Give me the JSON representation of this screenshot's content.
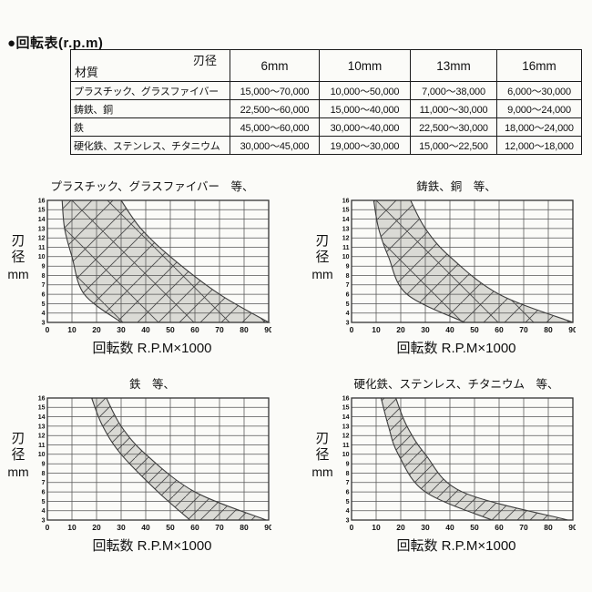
{
  "page": {
    "title": "●回転表(r.p.m)"
  },
  "colors": {
    "ink": "#111111",
    "table_border": "#1b1b1b",
    "grid": "#555555",
    "plot_border": "#333333",
    "band_fill": "#dadad5",
    "band_edge": "#3d3d3d",
    "hatch": "#4a4a4a"
  },
  "table": {
    "corner": {
      "top_right": "刃径",
      "bottom_left": "材質"
    },
    "columns": [
      "6mm",
      "10mm",
      "13mm",
      "16mm"
    ],
    "rows": [
      {
        "material": "プラスチック、グラスファイバー",
        "values": [
          "15,000〜70,000",
          "10,000〜50,000",
          "7,000〜38,000",
          "6,000〜30,000"
        ]
      },
      {
        "material": "鋳鉄、銅",
        "values": [
          "22,500〜60,000",
          "15,000〜40,000",
          "11,000〜30,000",
          "9,000〜24,000"
        ]
      },
      {
        "material": "鉄",
        "values": [
          "45,000〜60,000",
          "30,000〜40,000",
          "22,500〜30,000",
          "18,000〜24,000"
        ]
      },
      {
        "material": "硬化鉄、ステンレス、チタニウム",
        "values": [
          "30,000〜45,000",
          "19,000〜30,000",
          "15,000〜22,500",
          "12,000〜18,000"
        ]
      }
    ]
  },
  "axes": {
    "ylabel_chars": [
      "刃",
      "径",
      "mm"
    ],
    "xlabel": "回転数 R.P.M×1000"
  },
  "chart_data": [
    {
      "type": "area",
      "title": "プラスチック、グラスファイバー　等、",
      "xlabel": "回転数 R.P.M×1000",
      "ylabel": "刃径 mm",
      "xlim": [
        0,
        90
      ],
      "ylim": [
        3,
        16
      ],
      "x_tick_step": 10,
      "y_tick_step": 1,
      "grid": true,
      "hatch": "cross",
      "hatch_spacing": 23,
      "band": {
        "left": [
          [
            6,
            16
          ],
          [
            7,
            13
          ],
          [
            10,
            10
          ],
          [
            15,
            6
          ],
          [
            30,
            3
          ]
        ],
        "right": [
          [
            30,
            16
          ],
          [
            38,
            13
          ],
          [
            50,
            10
          ],
          [
            70,
            6
          ],
          [
            90,
            3
          ]
        ]
      }
    },
    {
      "type": "area",
      "title": "鋳鉄、銅　等、",
      "xlabel": "回転数 R.P.M×1000",
      "ylabel": "刃径 mm",
      "xlim": [
        0,
        90
      ],
      "ylim": [
        3,
        16
      ],
      "x_tick_step": 10,
      "y_tick_step": 1,
      "grid": true,
      "hatch": "cross",
      "hatch_spacing": 23,
      "band": {
        "left": [
          [
            9,
            16
          ],
          [
            11,
            13
          ],
          [
            15,
            10
          ],
          [
            22.5,
            6
          ],
          [
            46,
            3
          ]
        ],
        "right": [
          [
            24,
            16
          ],
          [
            30,
            13
          ],
          [
            40,
            10
          ],
          [
            60,
            6
          ],
          [
            90,
            3
          ]
        ]
      }
    },
    {
      "type": "area",
      "title": "鉄　等、",
      "xlabel": "回転数 R.P.M×1000",
      "ylabel": "刃径 mm",
      "xlim": [
        0,
        90
      ],
      "ylim": [
        3,
        16
      ],
      "x_tick_step": 10,
      "y_tick_step": 1,
      "grid": true,
      "hatch": "fwd",
      "hatch_spacing": 14,
      "band": {
        "left": [
          [
            18,
            16
          ],
          [
            22.5,
            13
          ],
          [
            30,
            10
          ],
          [
            45,
            6
          ],
          [
            58,
            3
          ]
        ],
        "right": [
          [
            24,
            16
          ],
          [
            30,
            13
          ],
          [
            40,
            10
          ],
          [
            60,
            6
          ],
          [
            89,
            3
          ]
        ]
      }
    },
    {
      "type": "area",
      "title": "硬化鉄、ステンレス、チタニウム　等、",
      "xlabel": "回転数 R.P.M×1000",
      "ylabel": "刃径 mm",
      "xlim": [
        0,
        90
      ],
      "ylim": [
        3,
        16
      ],
      "x_tick_step": 10,
      "y_tick_step": 1,
      "grid": true,
      "hatch": "fwd",
      "hatch_spacing": 14,
      "band": {
        "left": [
          [
            12,
            16
          ],
          [
            15,
            13
          ],
          [
            19,
            10
          ],
          [
            30,
            6
          ],
          [
            57,
            3
          ]
        ],
        "right": [
          [
            18,
            16
          ],
          [
            22.5,
            13
          ],
          [
            30,
            10
          ],
          [
            45,
            6
          ],
          [
            88,
            3
          ]
        ]
      }
    }
  ]
}
